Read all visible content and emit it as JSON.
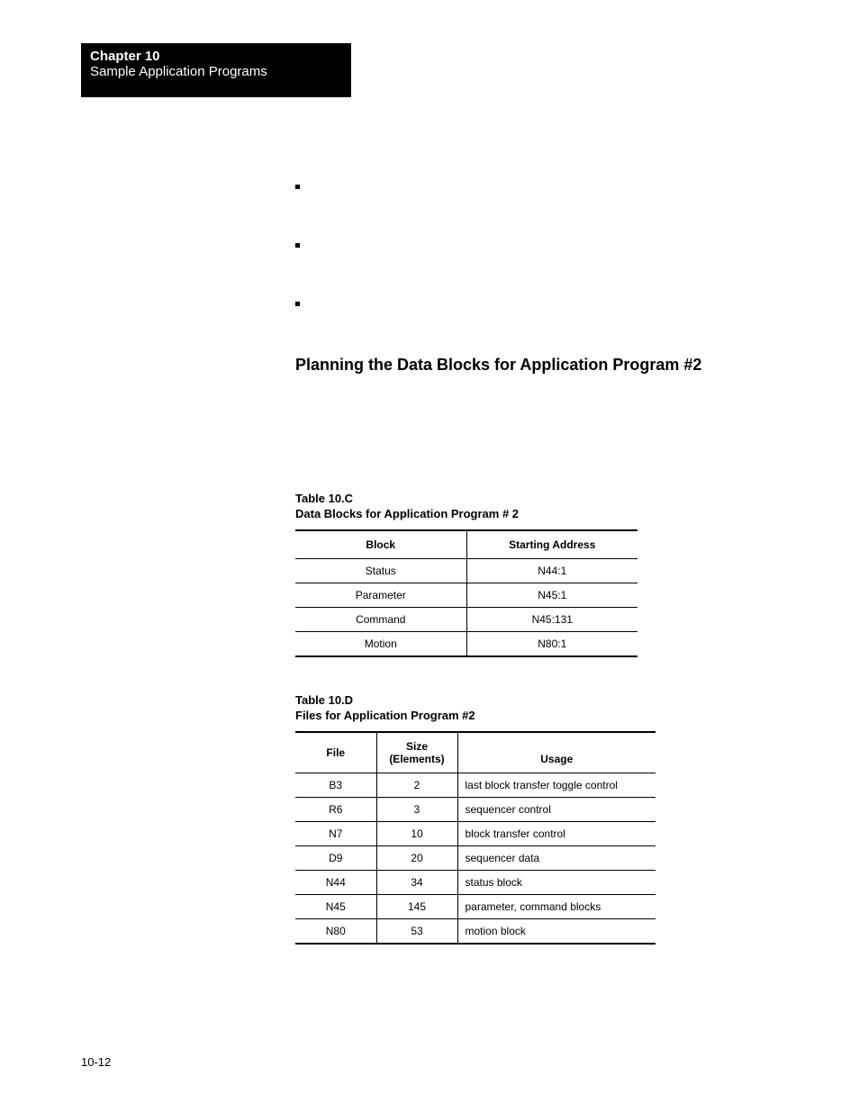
{
  "header": {
    "chapter": "Chapter 10",
    "title": "Sample Application Programs"
  },
  "section_heading": "Planning the Data Blocks for Application Program #2",
  "table_c": {
    "label": "Table 10.C",
    "caption": "Data Blocks for Application Program # 2",
    "columns": [
      "Block",
      "Starting Address"
    ],
    "rows": [
      [
        "Status",
        "N44:1"
      ],
      [
        "Parameter",
        "N45:1"
      ],
      [
        "Command",
        "N45:131"
      ],
      [
        "Motion",
        "N80:1"
      ]
    ]
  },
  "table_d": {
    "label": "Table 10.D",
    "caption": "Files for Application Program #2",
    "columns": [
      "File",
      "Size\n(Elements)",
      "Usage"
    ],
    "rows": [
      [
        "B3",
        "2",
        "last block transfer toggle control"
      ],
      [
        "R6",
        "3",
        "sequencer control"
      ],
      [
        "N7",
        "10",
        "block transfer control"
      ],
      [
        "D9",
        "20",
        "sequencer data"
      ],
      [
        "N44",
        "34",
        "status block"
      ],
      [
        "N45",
        "145",
        "parameter, command blocks"
      ],
      [
        "N80",
        "53",
        "motion block"
      ]
    ]
  },
  "page_number": "10-12"
}
